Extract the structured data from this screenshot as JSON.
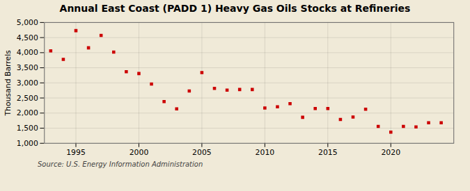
{
  "chart_data": {
    "type": "scatter",
    "title": "Annual East Coast (PADD 1) Heavy Gas Oils Stocks at Refineries",
    "ylabel": "Thousand Barrels",
    "source": "Source: U.S. Energy Information Administration",
    "x": [
      1993,
      1994,
      1995,
      1996,
      1997,
      1998,
      1999,
      2000,
      2001,
      2002,
      2003,
      2004,
      2005,
      2006,
      2007,
      2008,
      2009,
      2010,
      2011,
      2012,
      2013,
      2014,
      2015,
      2016,
      2017,
      2018,
      2019,
      2020,
      2021,
      2022,
      2023,
      2024
    ],
    "values": [
      4060,
      3780,
      4730,
      4160,
      4570,
      4020,
      3370,
      3310,
      2960,
      2380,
      2140,
      2730,
      3340,
      2820,
      2760,
      2780,
      2780,
      2170,
      2210,
      2310,
      1860,
      2150,
      2150,
      1790,
      1870,
      2130,
      1560,
      1370,
      1560,
      1540,
      1680,
      1680
    ],
    "color": "#cc0000",
    "marker": "square",
    "xlim": [
      1992.5,
      2025
    ],
    "xticks": [
      1995,
      2000,
      2005,
      2010,
      2015,
      2020
    ],
    "ylim": [
      1000,
      5000
    ],
    "yticks": [
      {
        "value": 1000,
        "label": "1,000"
      },
      {
        "value": 1500,
        "label": "1,500"
      },
      {
        "value": 2000,
        "label": "2,000"
      },
      {
        "value": 2500,
        "label": "2,500"
      },
      {
        "value": 3000,
        "label": "3,000"
      },
      {
        "value": 3500,
        "label": "3,500"
      },
      {
        "value": 4000,
        "label": "4,000"
      },
      {
        "value": 4500,
        "label": "4,500"
      },
      {
        "value": 5000,
        "label": "5,000"
      }
    ],
    "grid": true
  }
}
